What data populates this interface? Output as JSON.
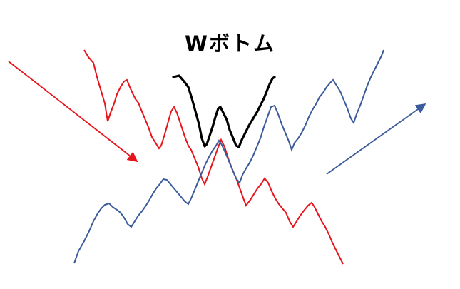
{
  "title": "Wボトム",
  "colors": {
    "red": "#e8141b",
    "blue": "#3b5b9a",
    "black": "#000000"
  }
}
